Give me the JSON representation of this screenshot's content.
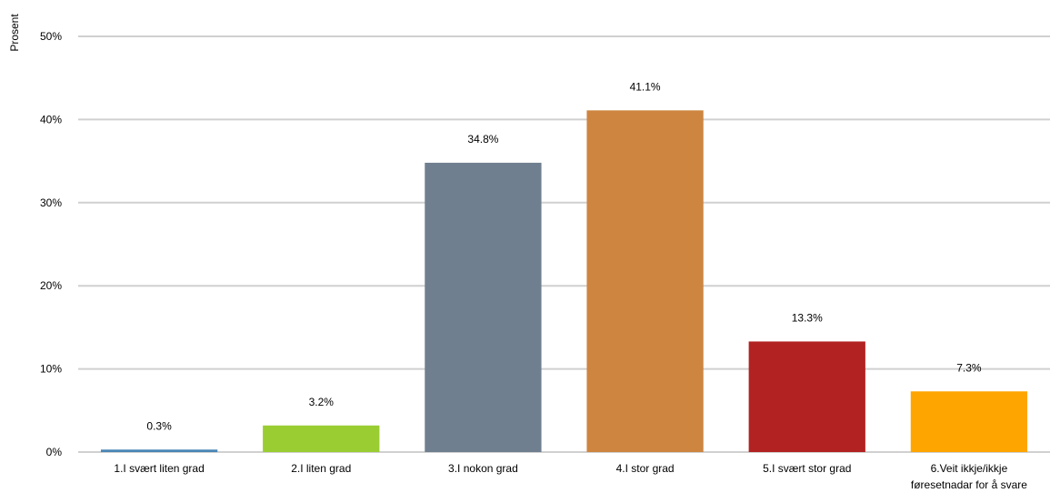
{
  "chart_data": {
    "type": "bar",
    "ylabel": "Prosent",
    "ylim": [
      0,
      50
    ],
    "yticks": [
      0,
      10,
      20,
      30,
      40,
      50
    ],
    "ytick_labels": [
      "0%",
      "10%",
      "20%",
      "30%",
      "40%",
      "50%"
    ],
    "grid": true,
    "legend": "none",
    "categories": [
      [
        "1.I svært liten grad"
      ],
      [
        "2.I liten grad"
      ],
      [
        "3.I nokon grad"
      ],
      [
        "4.I stor grad"
      ],
      [
        "5.I svært stor grad"
      ],
      [
        "6.Veit ikkje/ikkje",
        "føresetnadar for å svare"
      ]
    ],
    "values": [
      0.3,
      3.2,
      34.8,
      41.1,
      13.3,
      7.3
    ],
    "data_labels": [
      "0.3%",
      "3.2%",
      "34.8%",
      "41.1%",
      "13.3%",
      "7.3%"
    ],
    "colors": [
      "#4a86b5",
      "#9acd32",
      "#6f7f8f",
      "#cd8540",
      "#b22222",
      "#ffa500"
    ]
  }
}
